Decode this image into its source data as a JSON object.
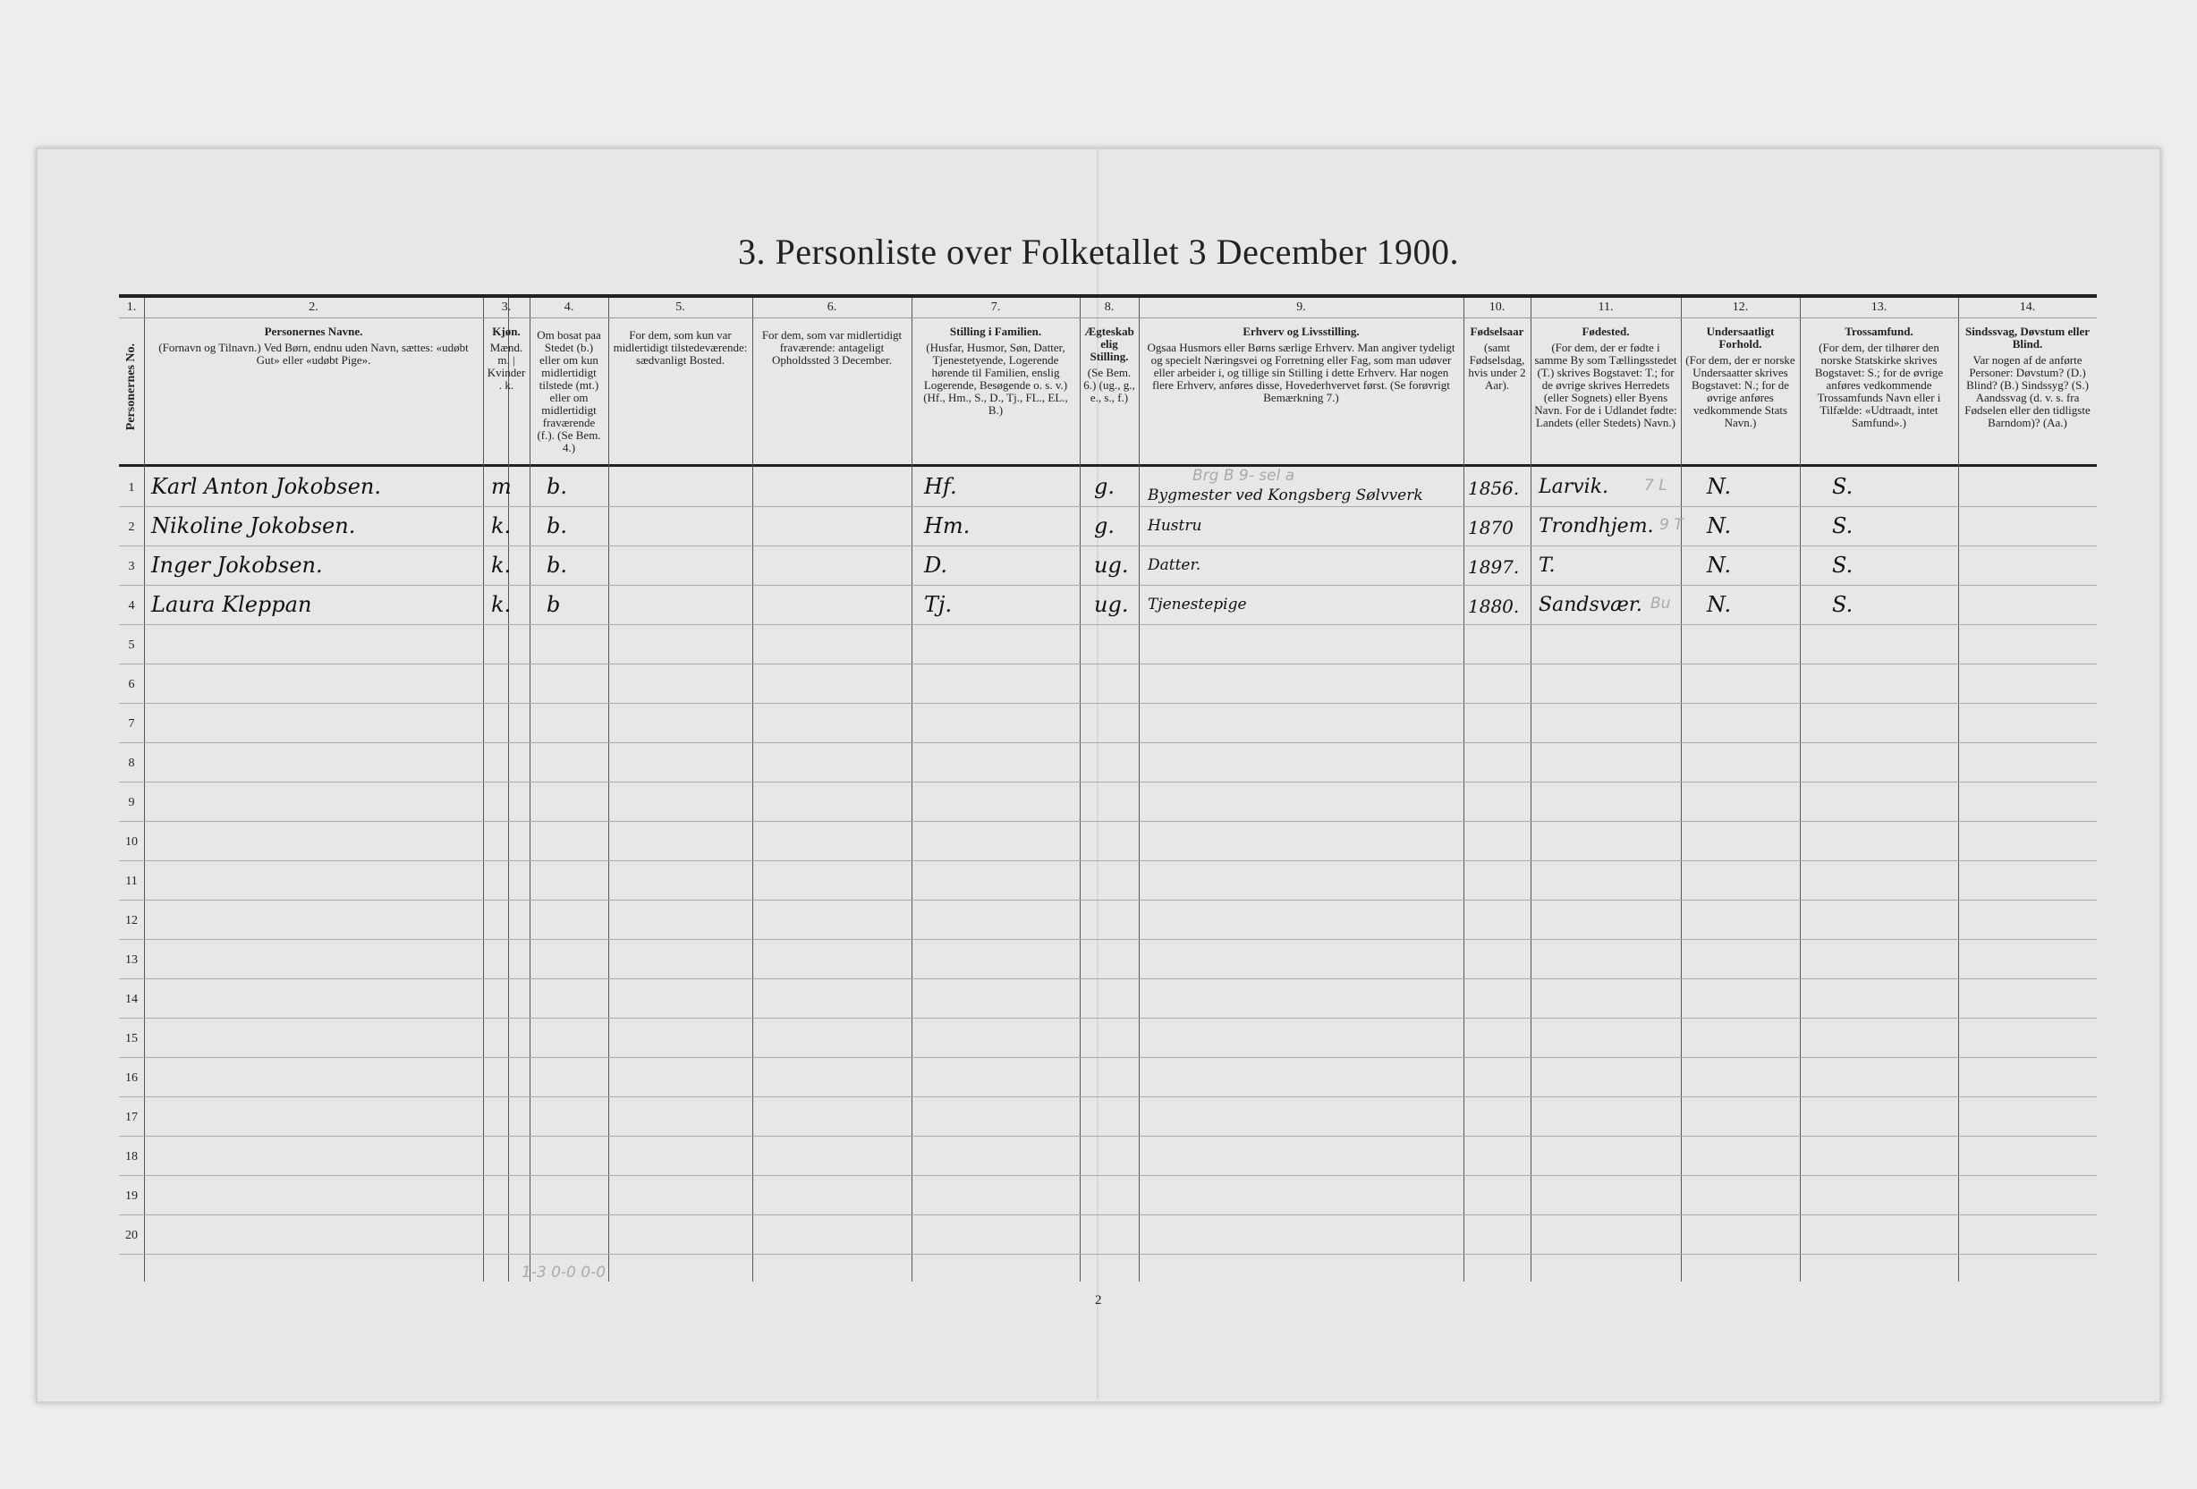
{
  "title": "3. Personliste over Folketallet 3 December 1900.",
  "columns": [
    {
      "num": "1.",
      "heading": "Personernes No.",
      "text": ""
    },
    {
      "num": "2.",
      "heading": "Personernes Navne.",
      "text": "(Fornavn og Tilnavn.) Ved Børn, endnu uden Navn, sættes: «udøbt Gut» eller «udøbt Pige»."
    },
    {
      "num": "3.",
      "heading": "Kjøn.",
      "text": "Mænd. m. | Kvinder. k."
    },
    {
      "num": "4.",
      "heading": "",
      "text": "Om bosat paa Stedet (b.) eller om kun midlertidigt tilstede (mt.) eller om midlertidigt fraværende (f.). (Se Bem. 4.)"
    },
    {
      "num": "5.",
      "heading": "",
      "text": "For dem, som kun var midlertidigt tilstedeværende: sædvanligt Bosted."
    },
    {
      "num": "6.",
      "heading": "",
      "text": "For dem, som var midlertidigt fraværende: antageligt Opholdssted 3 December."
    },
    {
      "num": "7.",
      "heading": "Stilling i Familien.",
      "text": "(Husfar, Husmor, Søn, Datter, Tjenestetyende, Logerende hørende til Familien, enslig Logerende, Besøgende o. s. v.) (Hf., Hm., S., D., Tj., FL., EL., B.)"
    },
    {
      "num": "8.",
      "heading": "Ægteskabelig Stilling.",
      "text": "(Se Bem. 6.) (ug., g., e., s., f.)"
    },
    {
      "num": "9.",
      "heading": "Erhverv og Livsstilling.",
      "text": "Ogsaa Husmors eller Børns særlige Erhverv. Man angiver tydeligt og specielt Næringsvei og Forretning eller Fag, som man udøver eller arbeider i, og tillige sin Stilling i dette Erhverv. Har nogen flere Erhverv, anføres disse, Hovederhvervet først. (Se forøvrigt Bemærkning 7.)"
    },
    {
      "num": "10.",
      "heading": "Fødselsaar",
      "text": "(samt Fødselsdag, hvis under 2 Aar)."
    },
    {
      "num": "11.",
      "heading": "Fødested.",
      "text": "(For dem, der er fødte i samme By som Tællingsstedet (T.) skrives Bogstavet: T.; for de øvrige skrives Herredets (eller Sognets) eller Byens Navn. For de i Udlandet fødte: Landets (eller Stedets) Navn.)"
    },
    {
      "num": "12.",
      "heading": "Undersaatligt Forhold.",
      "text": "(For dem, der er norske Undersaatter skrives Bogstavet: N.; for de øvrige anføres vedkommende Stats Navn.)"
    },
    {
      "num": "13.",
      "heading": "Trossamfund.",
      "text": "(For dem, der tilhører den norske Statskirke skrives Bogstavet: S.; for de øvrige anføres vedkommende Trossamfunds Navn eller i Tilfælde: «Udtraadt, intet Samfund».)"
    },
    {
      "num": "14.",
      "heading": "Sindssvag, Døvstum eller Blind.",
      "text": "Var nogen af de anførte Personer: Døvstum? (D.) Blind? (B.) Sindssyg? (S.) Aandssvag (d. v. s. fra Fødselen eller den tidligste Barndom)? (Aa.)"
    }
  ],
  "row_numbers": [
    "1",
    "2",
    "3",
    "4",
    "5",
    "6",
    "7",
    "8",
    "9",
    "10",
    "11",
    "12",
    "13",
    "14",
    "15",
    "16",
    "17",
    "18",
    "19",
    "20"
  ],
  "persons": [
    {
      "name": "Karl Anton Jokobsen.",
      "sex": "m",
      "residence": "b.",
      "family": "Hf.",
      "marital": "g.",
      "occupation": "Bygmester ved Kongsberg Sølvverk",
      "born": "1856.",
      "birthplace": "Larvik.",
      "citizenship": "N.",
      "religion": "S."
    },
    {
      "name": "Nikoline Jokobsen.",
      "sex": "k.",
      "residence": "b.",
      "family": "Hm.",
      "marital": "g.",
      "occupation": "Hustru",
      "born": "1870",
      "birthplace": "Trondhjem.",
      "citizenship": "N.",
      "religion": "S."
    },
    {
      "name": "Inger Jokobsen.",
      "sex": "k.",
      "residence": "b.",
      "family": "D.",
      "marital": "ug.",
      "occupation": "Datter.",
      "born": "1897.",
      "birthplace": "T.",
      "citizenship": "N.",
      "religion": "S."
    },
    {
      "name": "Laura Kleppan",
      "sex": "k.",
      "residence": "b",
      "family": "Tj.",
      "marital": "ug.",
      "occupation": "Tjenestepige",
      "born": "1880.",
      "birthplace": "Sandsvær.",
      "citizenship": "N.",
      "religion": "S."
    }
  ],
  "pencil_notes": {
    "occupation_code": "Brg B 9- sel a",
    "birthplace_code_1": "7 L",
    "birthplace_code_2": "9 T",
    "birthplace_code_4": "Bu",
    "totals": "1-3   0-0   0-0"
  },
  "page_number": "2"
}
